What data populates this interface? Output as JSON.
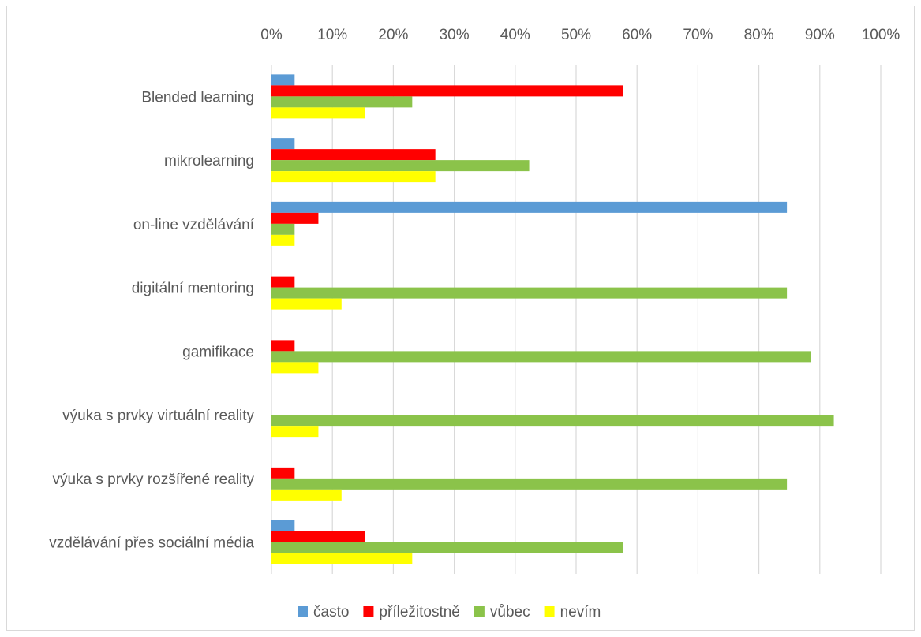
{
  "chart_data": {
    "type": "bar",
    "orientation": "horizontal",
    "title": "",
    "xlabel": "",
    "ylabel": "",
    "xlim": [
      0,
      100
    ],
    "x_ticks": [
      "0%",
      "10%",
      "20%",
      "30%",
      "40%",
      "50%",
      "60%",
      "70%",
      "80%",
      "90%",
      "100%"
    ],
    "x_axis_position": "top",
    "grid": true,
    "legend_position": "bottom",
    "categories": [
      "Blended learning",
      "mikrolearning",
      "on-line vzdělávání",
      "digitální mentoring",
      "gamifikace",
      "výuka s prvky virtuální reality",
      "výuka s prvky rozšířené reality",
      "vzdělávání přes sociální média"
    ],
    "series": [
      {
        "name": "často",
        "color": "#5b9bd5",
        "values": [
          3.8,
          3.8,
          84.6,
          0,
          0,
          0,
          0,
          3.8
        ]
      },
      {
        "name": "příležitostně",
        "color": "#ff0000",
        "values": [
          57.7,
          26.9,
          7.7,
          3.8,
          3.8,
          0,
          3.8,
          15.4
        ]
      },
      {
        "name": "vůbec",
        "color": "#8bc34a",
        "values": [
          23.1,
          42.3,
          3.8,
          84.6,
          88.5,
          92.3,
          84.6,
          57.7
        ]
      },
      {
        "name": "nevím",
        "color": "#ffff00",
        "values": [
          15.4,
          26.9,
          3.8,
          11.5,
          7.7,
          7.7,
          11.5,
          23.1
        ]
      }
    ]
  }
}
